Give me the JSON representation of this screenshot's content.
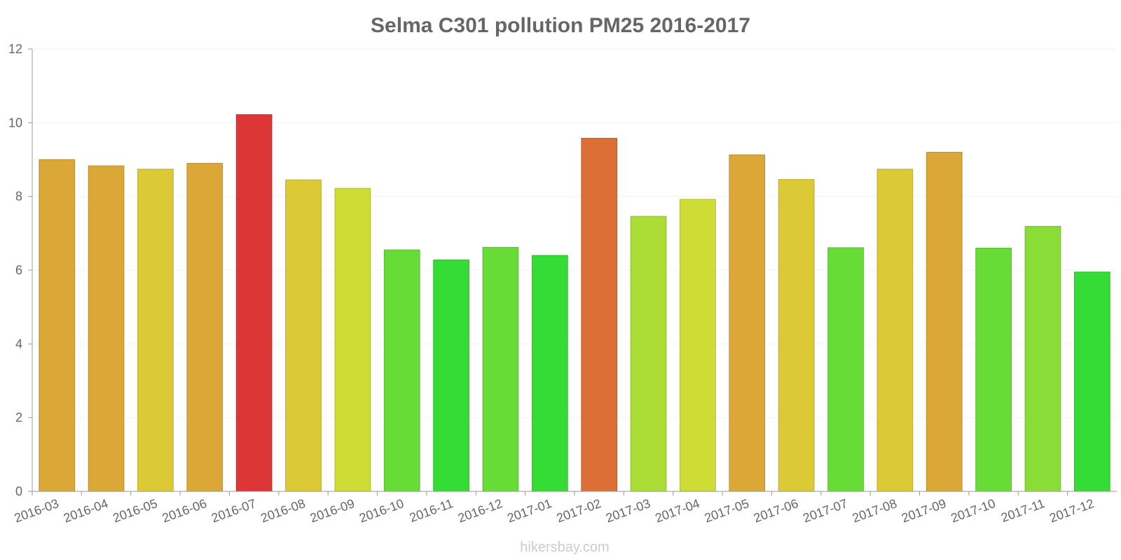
{
  "chart_data": {
    "type": "bar",
    "title": "Selma C301 pollution PM25 2016-2017",
    "xlabel": "",
    "ylabel": "",
    "ylim": [
      0,
      12
    ],
    "yticks": [
      0,
      2,
      4,
      6,
      8,
      10,
      12
    ],
    "grid": true,
    "categories": [
      "2016-03",
      "2016-04",
      "2016-05",
      "2016-06",
      "2016-07",
      "2016-08",
      "2016-09",
      "2016-10",
      "2016-11",
      "2016-12",
      "2017-01",
      "2017-02",
      "2017-03",
      "2017-04",
      "2017-05",
      "2017-06",
      "2017-07",
      "2017-08",
      "2017-09",
      "2017-10",
      "2017-11",
      "2017-12"
    ],
    "values": [
      9.0,
      8.83,
      8.74,
      8.9,
      10.22,
      8.45,
      8.22,
      6.55,
      6.28,
      6.62,
      6.4,
      9.58,
      7.46,
      7.92,
      9.13,
      8.46,
      6.61,
      8.74,
      9.2,
      6.6,
      7.19,
      5.95
    ],
    "colors": [
      "#dba736",
      "#dba736",
      "#dcc936",
      "#dba736",
      "#dc3636",
      "#dcc936",
      "#cedc36",
      "#68dc36",
      "#36dc36",
      "#68dc36",
      "#36dc36",
      "#dc6f36",
      "#acdc36",
      "#cedc36",
      "#dba736",
      "#dcc936",
      "#68dc36",
      "#dcc936",
      "#dba736",
      "#68dc36",
      "#8adc36",
      "#36dc36"
    ]
  },
  "footer": {
    "credit": "hikersbay.com"
  }
}
